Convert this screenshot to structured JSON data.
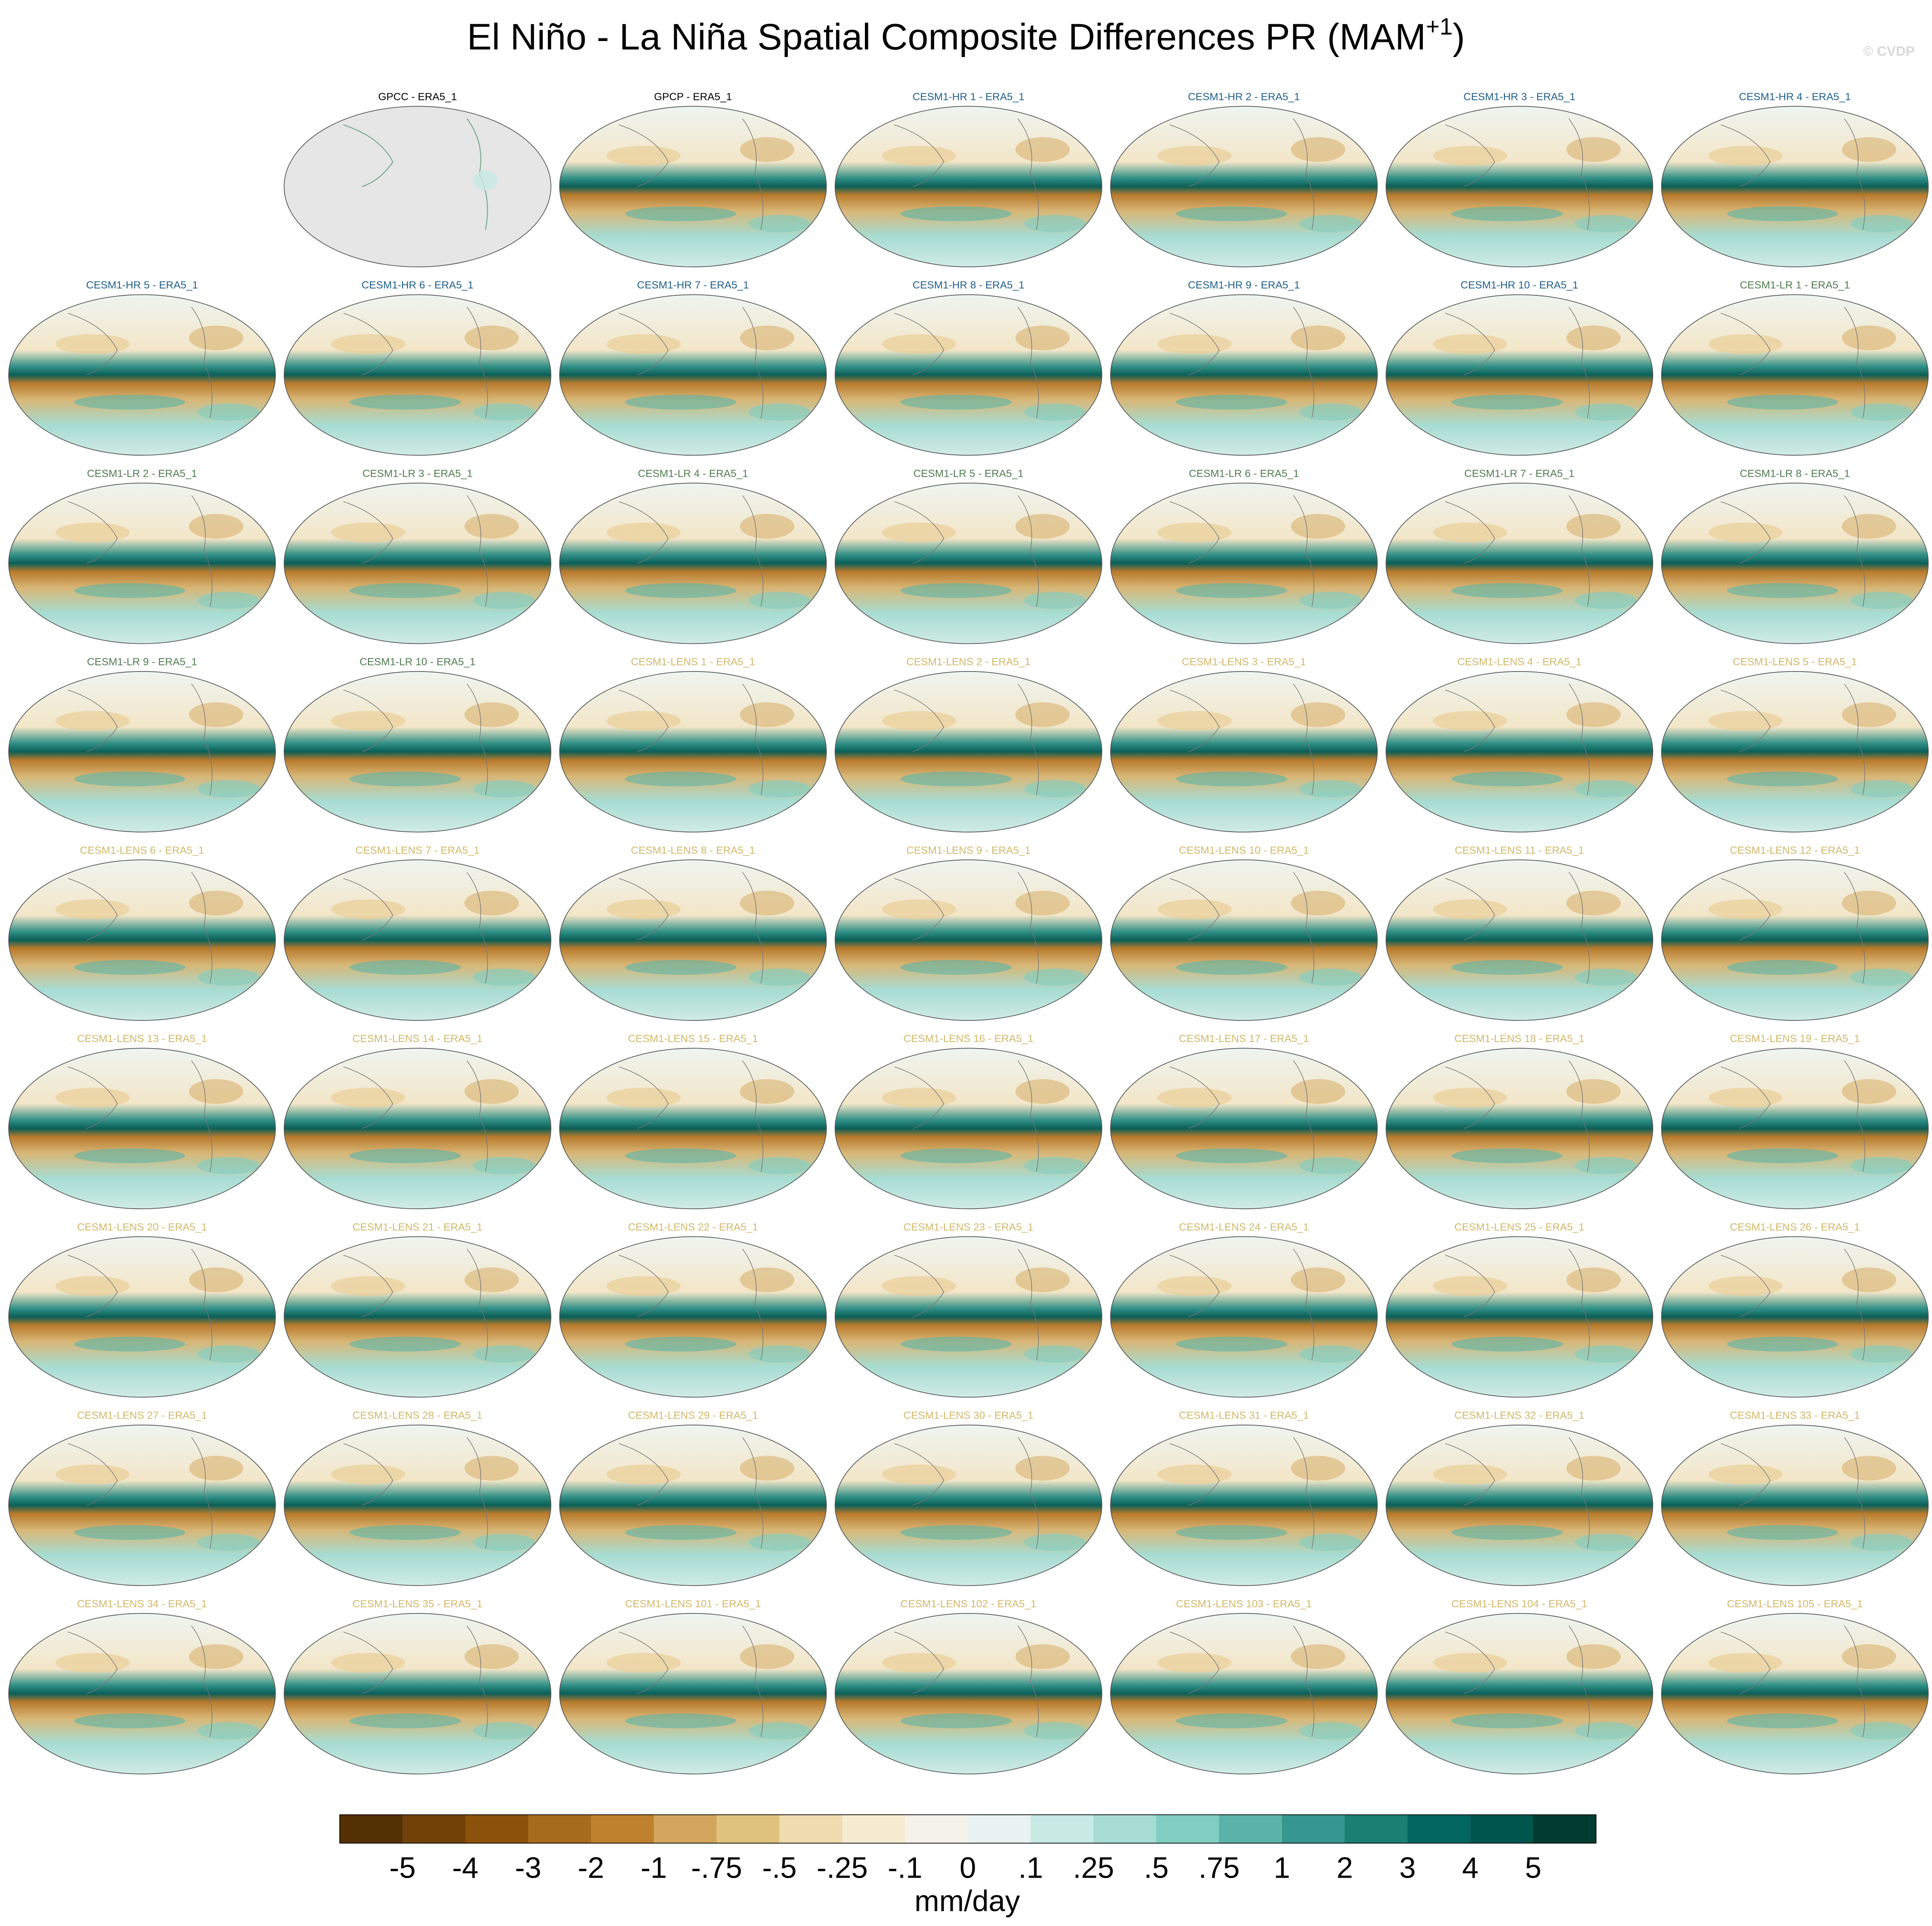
{
  "title": {
    "main": "El Niño - La Niña Spatial Composite Differences PR (MAM",
    "superscript": "+1",
    "closing": ")"
  },
  "watermark": "© CVDP",
  "panels": [
    {
      "title": "GPCC - ERA5_1",
      "color": "#000000"
    },
    {
      "title": "GPCP - ERA5_1",
      "color": "#000000"
    },
    {
      "title": "CESM1-HR 1 - ERA5_1",
      "color": "#1f5f8b"
    },
    {
      "title": "CESM1-HR 2 - ERA5_1",
      "color": "#1f5f8b"
    },
    {
      "title": "CESM1-HR 3 - ERA5_1",
      "color": "#1f5f8b"
    },
    {
      "title": "CESM1-HR 4 - ERA5_1",
      "color": "#1f5f8b"
    },
    {
      "title": "CESM1-HR 5 - ERA5_1",
      "color": "#1f5f8b"
    },
    {
      "title": "CESM1-HR 6 - ERA5_1",
      "color": "#1f5f8b"
    },
    {
      "title": "CESM1-HR 7 - ERA5_1",
      "color": "#1f5f8b"
    },
    {
      "title": "CESM1-HR 8 - ERA5_1",
      "color": "#1f5f8b"
    },
    {
      "title": "CESM1-HR 9 - ERA5_1",
      "color": "#1f5f8b"
    },
    {
      "title": "CESM1-HR 10 - ERA5_1",
      "color": "#1f5f8b"
    },
    {
      "title": "CESM1-LR 1 - ERA5_1",
      "color": "#4f7d4f"
    },
    {
      "title": "CESM1-LR 2 - ERA5_1",
      "color": "#4f7d4f"
    },
    {
      "title": "CESM1-LR 3 - ERA5_1",
      "color": "#4f7d4f"
    },
    {
      "title": "CESM1-LR 4 - ERA5_1",
      "color": "#4f7d4f"
    },
    {
      "title": "CESM1-LR 5 - ERA5_1",
      "color": "#4f7d4f"
    },
    {
      "title": "CESM1-LR 6 - ERA5_1",
      "color": "#4f7d4f"
    },
    {
      "title": "CESM1-LR 7 - ERA5_1",
      "color": "#4f7d4f"
    },
    {
      "title": "CESM1-LR 8 - ERA5_1",
      "color": "#4f7d4f"
    },
    {
      "title": "CESM1-LR 9 - ERA5_1",
      "color": "#4f7d4f"
    },
    {
      "title": "CESM1-LR 10 - ERA5_1",
      "color": "#4f7d4f"
    },
    {
      "title": "CESM1-LENS 1 - ERA5_1",
      "color": "#d2b869"
    },
    {
      "title": "CESM1-LENS 2 - ERA5_1",
      "color": "#d2b869"
    },
    {
      "title": "CESM1-LENS 3 - ERA5_1",
      "color": "#d2b869"
    },
    {
      "title": "CESM1-LENS 4 - ERA5_1",
      "color": "#d2b869"
    },
    {
      "title": "CESM1-LENS 5 - ERA5_1",
      "color": "#d2b869"
    },
    {
      "title": "CESM1-LENS 6 - ERA5_1",
      "color": "#d2b869"
    },
    {
      "title": "CESM1-LENS 7 - ERA5_1",
      "color": "#d2b869"
    },
    {
      "title": "CESM1-LENS 8 - ERA5_1",
      "color": "#d2b869"
    },
    {
      "title": "CESM1-LENS 9 - ERA5_1",
      "color": "#d2b869"
    },
    {
      "title": "CESM1-LENS 10 - ERA5_1",
      "color": "#d2b869"
    },
    {
      "title": "CESM1-LENS 11 - ERA5_1",
      "color": "#d2b869"
    },
    {
      "title": "CESM1-LENS 12 - ERA5_1",
      "color": "#d2b869"
    },
    {
      "title": "CESM1-LENS 13 - ERA5_1",
      "color": "#d2b869"
    },
    {
      "title": "CESM1-LENS 14 - ERA5_1",
      "color": "#d2b869"
    },
    {
      "title": "CESM1-LENS 15 - ERA5_1",
      "color": "#d2b869"
    },
    {
      "title": "CESM1-LENS 16 - ERA5_1",
      "color": "#d2b869"
    },
    {
      "title": "CESM1-LENS 17 - ERA5_1",
      "color": "#d2b869"
    },
    {
      "title": "CESM1-LENS 18 - ERA5_1",
      "color": "#d2b869"
    },
    {
      "title": "CESM1-LENS 19 - ERA5_1",
      "color": "#d2b869"
    },
    {
      "title": "CESM1-LENS 20 - ERA5_1",
      "color": "#d2b869"
    },
    {
      "title": "CESM1-LENS 21 - ERA5_1",
      "color": "#d2b869"
    },
    {
      "title": "CESM1-LENS 22 - ERA5_1",
      "color": "#d2b869"
    },
    {
      "title": "CESM1-LENS 23 - ERA5_1",
      "color": "#d2b869"
    },
    {
      "title": "CESM1-LENS 24 - ERA5_1",
      "color": "#d2b869"
    },
    {
      "title": "CESM1-LENS 25 - ERA5_1",
      "color": "#d2b869"
    },
    {
      "title": "CESM1-LENS 26 - ERA5_1",
      "color": "#d2b869"
    },
    {
      "title": "CESM1-LENS 27 - ERA5_1",
      "color": "#d2b869"
    },
    {
      "title": "CESM1-LENS 28 - ERA5_1",
      "color": "#d2b869"
    },
    {
      "title": "CESM1-LENS 29 - ERA5_1",
      "color": "#d2b869"
    },
    {
      "title": "CESM1-LENS 30 - ERA5_1",
      "color": "#d2b869"
    },
    {
      "title": "CESM1-LENS 31 - ERA5_1",
      "color": "#d2b869"
    },
    {
      "title": "CESM1-LENS 32 - ERA5_1",
      "color": "#d2b869"
    },
    {
      "title": "CESM1-LENS 33 - ERA5_1",
      "color": "#d2b869"
    },
    {
      "title": "CESM1-LENS 34 - ERA5_1",
      "color": "#d2b869"
    },
    {
      "title": "CESM1-LENS 35 - ERA5_1",
      "color": "#d2b869"
    },
    {
      "title": "CESM1-LENS 101 - ERA5_1",
      "color": "#d2b869"
    },
    {
      "title": "CESM1-LENS 102 - ERA5_1",
      "color": "#d2b869"
    },
    {
      "title": "CESM1-LENS 103 - ERA5_1",
      "color": "#d2b869"
    },
    {
      "title": "CESM1-LENS 104 - ERA5_1",
      "color": "#d2b869"
    },
    {
      "title": "CESM1-LENS 105 - ERA5_1",
      "color": "#d2b869"
    }
  ],
  "colorbar": {
    "labels": [
      "-5",
      "-4",
      "-3",
      "-2",
      "-1",
      "-.75",
      "-.5",
      "-.25",
      "-.1",
      "0",
      ".1",
      ".25",
      ".5",
      ".75",
      "1",
      "2",
      "3",
      "4",
      "5"
    ],
    "colors": [
      "#543005",
      "#714108",
      "#8c510a",
      "#a76b1e",
      "#bf812d",
      "#d2a55d",
      "#dfc27d",
      "#eedcb0",
      "#f6ecd2",
      "#f5f2ec",
      "#e9f3f1",
      "#c7eae5",
      "#a6dcd2",
      "#80cdc1",
      "#5ab4a9",
      "#35978f",
      "#1a8074",
      "#01665e",
      "#00564e",
      "#003c30"
    ],
    "units": "mm/day"
  }
}
